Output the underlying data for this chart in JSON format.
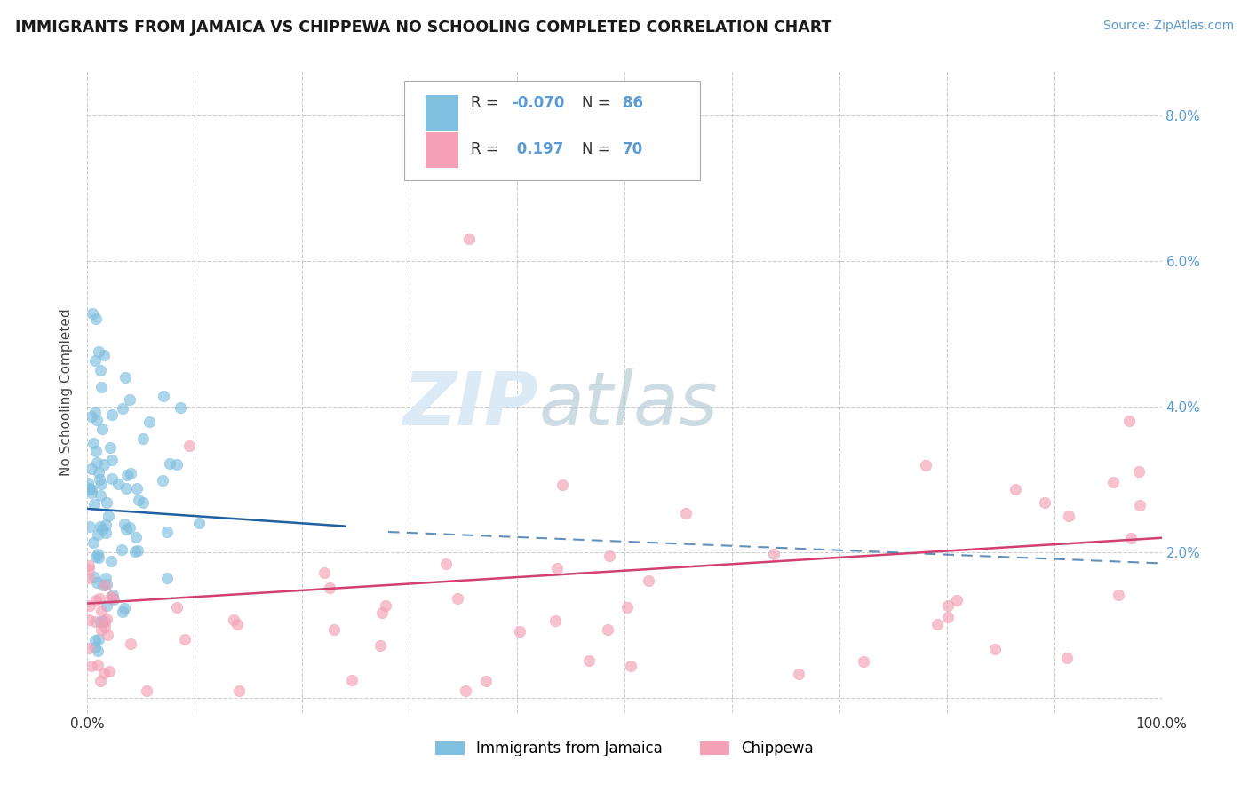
{
  "title": "IMMIGRANTS FROM JAMAICA VS CHIPPEWA NO SCHOOLING COMPLETED CORRELATION CHART",
  "source_text": "Source: ZipAtlas.com",
  "ylabel": "No Schooling Completed",
  "legend_label_1": "Immigrants from Jamaica",
  "legend_label_2": "Chippewa",
  "r1": -0.07,
  "n1": 86,
  "r2": 0.197,
  "n2": 70,
  "color1": "#7fbfdf",
  "color2": "#f4a0b5",
  "line1_color": "#2060a0",
  "line2_color": "#d04070",
  "background_color": "#ffffff",
  "grid_color": "#c8c8c8",
  "xmin": 0.0,
  "xmax": 1.0,
  "ymin": -0.002,
  "ymax": 0.086,
  "watermark_color": "#d8e8f4",
  "right_tick_color": "#5b9bd5",
  "title_color": "#1a1a1a",
  "source_color": "#5b9bd5"
}
